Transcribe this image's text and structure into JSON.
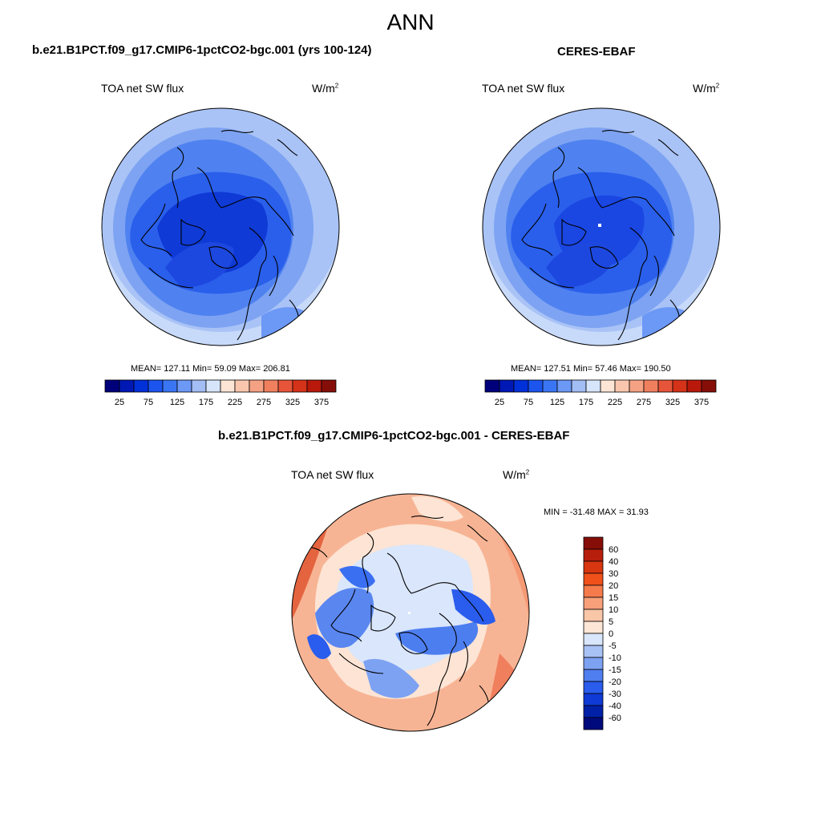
{
  "figure": {
    "title": "ANN",
    "panel_top_left": {
      "case_title": "b.e21.B1PCT.f09_g17.CMIP6-1pctCO2-bgc.001 (yrs 100-124)",
      "variable": "TOA net SW flux",
      "units_base": "W/m",
      "units_exp": "2",
      "stats": "MEAN= 127.11  Min=  59.09  Max= 206.81"
    },
    "panel_top_right": {
      "case_title": "CERES-EBAF",
      "variable": "TOA net SW flux",
      "units_base": "W/m",
      "units_exp": "2",
      "stats": "MEAN= 127.51  Min=  57.46  Max= 190.50"
    },
    "panel_bottom": {
      "case_title": "b.e21.B1PCT.f09_g17.CMIP6-1pctCO2-bgc.001 - CERES-EBAF",
      "variable": "TOA net SW flux",
      "units_base": "W/m",
      "units_exp": "2",
      "stats": "MIN = -31.48 MAX =  31.93"
    },
    "colorbar_horizontal": {
      "tick_labels": [
        "25",
        "75",
        "125",
        "175",
        "225",
        "275",
        "325",
        "375"
      ],
      "colors": [
        "#00007a",
        "#0018b4",
        "#0030d8",
        "#1c55ee",
        "#3a76f4",
        "#6c98f6",
        "#a3bdf5",
        "#d7e5fb",
        "#fde5d6",
        "#f9c6ad",
        "#f5a284",
        "#f07f5e",
        "#e6553a",
        "#d43219",
        "#b8190b",
        "#860e08"
      ]
    },
    "colorbar_vertical": {
      "tick_labels": [
        "60",
        "40",
        "30",
        "20",
        "15",
        "10",
        "5",
        "0",
        "-5",
        "-10",
        "-15",
        "-20",
        "-30",
        "-40",
        "-60"
      ],
      "colors": [
        "#860e08",
        "#b81e0c",
        "#d83610",
        "#f0501a",
        "#f57b4c",
        "#f7a07a",
        "#fac6a8",
        "#fde6d6",
        "#d9e6fb",
        "#a9c2f5",
        "#7ea2f2",
        "#4f7ef0",
        "#2a5ced",
        "#0f3ad6",
        "#0020a8",
        "#000a7c"
      ]
    }
  }
}
